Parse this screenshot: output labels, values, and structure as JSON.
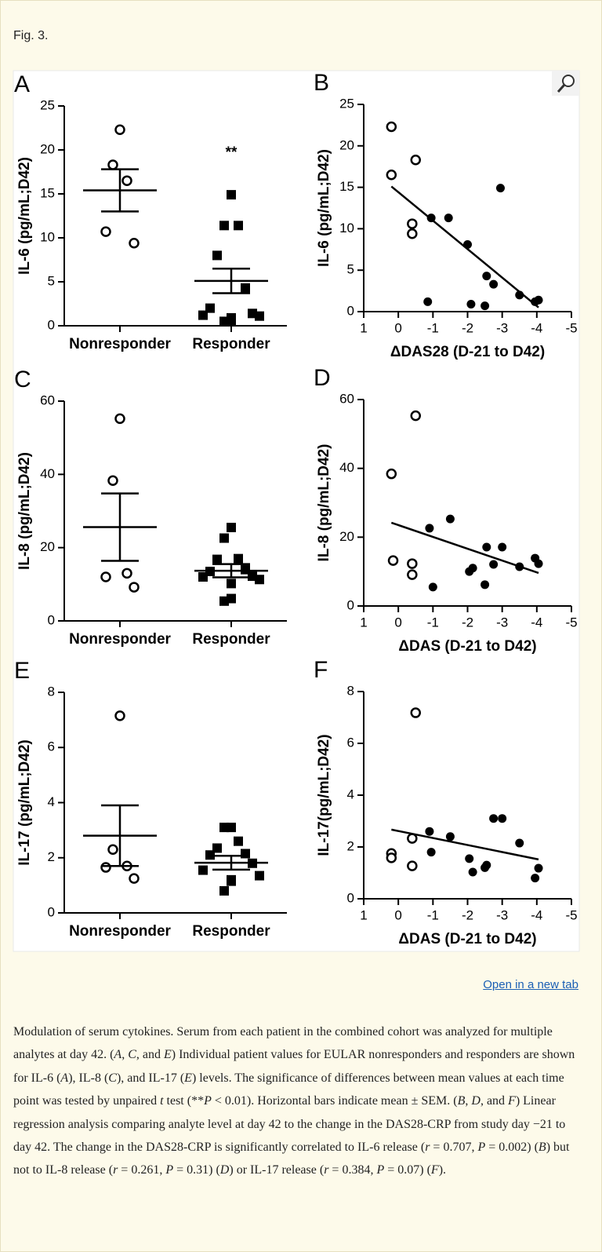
{
  "figure_label": "Fig. 3.",
  "link": "Open in a new tab",
  "chart_data": [
    {
      "type": "strip",
      "panel": "A",
      "ylabel": "IL-6 (pg/mL;D42)",
      "categories": [
        "Nonresponder",
        "Responder"
      ],
      "markers": [
        "circle-open",
        "square"
      ],
      "groups": [
        [
          22.3,
          18.3,
          16.5,
          10.7,
          9.4
        ],
        [
          14.9,
          11.4,
          11.4,
          8.0,
          4.3,
          2.0,
          1.4,
          1.2,
          1.1,
          0.9,
          0.6,
          0.5
        ]
      ],
      "means": [
        15.4,
        5.1
      ],
      "sems": [
        2.4,
        1.4
      ],
      "annotation": "**",
      "ylim": [
        0,
        25
      ],
      "yticks": [
        0,
        5,
        10,
        15,
        20,
        25
      ]
    },
    {
      "type": "scatter",
      "panel": "B",
      "ylabel": "IL-6 (pg/mL;D42)",
      "xlabel": "ΔDAS28 (D-21 to D42)",
      "series": [
        {
          "marker": "circle-open",
          "x": [
            0.2,
            0.2,
            -0.5,
            -0.4,
            -0.4
          ],
          "y": [
            22.3,
            16.5,
            18.3,
            10.6,
            9.4
          ]
        },
        {
          "marker": "circle-filled",
          "x": [
            -0.95,
            -1.45,
            -0.85,
            -2.0,
            -2.95,
            -2.1,
            -2.55,
            -2.75,
            -2.5,
            -3.5,
            -3.95,
            -4.05
          ],
          "y": [
            11.3,
            11.3,
            1.2,
            8.1,
            14.9,
            0.9,
            4.3,
            3.3,
            0.7,
            2.0,
            1.2,
            1.4
          ]
        }
      ],
      "fit": {
        "x": [
          0.2,
          -4.05
        ],
        "y": [
          15.1,
          0.5
        ]
      },
      "xlim": [
        1,
        -5
      ],
      "xticks": [
        1,
        0,
        -1,
        -2,
        -3,
        -4,
        -5
      ],
      "ylim": [
        0,
        25
      ],
      "yticks": [
        0,
        5,
        10,
        15,
        20,
        25
      ]
    },
    {
      "type": "strip",
      "panel": "C",
      "ylabel": "IL-8 (pg/mL;D42)",
      "categories": [
        "Nonresponder",
        "Responder"
      ],
      "markers": [
        "circle-open",
        "square"
      ],
      "groups": [
        [
          55.2,
          38.3,
          13.0,
          12.0,
          9.2
        ],
        [
          25.5,
          22.6,
          17.0,
          16.8,
          14.0,
          13.5,
          12.2,
          12.0,
          11.3,
          10.2,
          6.1,
          5.4
        ]
      ],
      "means": [
        25.6,
        13.7
      ],
      "sems": [
        9.2,
        1.8
      ],
      "ylim": [
        0,
        60
      ],
      "yticks": [
        0,
        20,
        40,
        60
      ]
    },
    {
      "type": "scatter",
      "panel": "D",
      "ylabel": "IL-8 (pg/mL;D42)",
      "xlabel": "ΔDAS (D-21 to D42)",
      "series": [
        {
          "marker": "circle-open",
          "x": [
            0.2,
            -0.5,
            0.15,
            -0.4,
            -0.4
          ],
          "y": [
            38.4,
            55.3,
            13.2,
            12.3,
            9.1
          ]
        },
        {
          "marker": "circle-filled",
          "x": [
            -0.9,
            -1.5,
            -1.0,
            -2.05,
            -2.15,
            -2.55,
            -3.0,
            -2.75,
            -2.5,
            -3.5,
            -3.95,
            -4.05
          ],
          "y": [
            22.6,
            25.3,
            5.5,
            10.0,
            11.0,
            17.1,
            17.1,
            12.1,
            6.2,
            11.4,
            13.9,
            12.3
          ]
        }
      ],
      "fit": {
        "x": [
          0.2,
          -4.05
        ],
        "y": [
          24.2,
          9.6
        ]
      },
      "xlim": [
        1,
        -5
      ],
      "xticks": [
        1,
        0,
        -1,
        -2,
        -3,
        -4,
        -5
      ],
      "ylim": [
        0,
        60
      ],
      "yticks": [
        0,
        20,
        40,
        60
      ]
    },
    {
      "type": "strip",
      "panel": "E",
      "ylabel": "IL-17 (pg/mL;D42)",
      "categories": [
        "Nonresponder",
        "Responder"
      ],
      "markers": [
        "circle-open",
        "square"
      ],
      "groups": [
        [
          7.15,
          2.3,
          1.7,
          1.65,
          1.25
        ],
        [
          3.1,
          3.1,
          2.6,
          2.35,
          2.15,
          2.1,
          1.8,
          1.55,
          1.35,
          1.2,
          1.15,
          0.8
        ]
      ],
      "means": [
        2.8,
        1.82
      ],
      "sems": [
        1.1,
        0.25
      ],
      "ylim": [
        0,
        8
      ],
      "yticks": [
        0,
        2,
        4,
        6,
        8
      ]
    },
    {
      "type": "scatter",
      "panel": "F",
      "ylabel": "IL-17(pg/mL;D42)",
      "xlabel": "ΔDAS (D-21 to D42)",
      "series": [
        {
          "marker": "circle-open",
          "x": [
            0.2,
            0.2,
            -0.4,
            -0.4,
            -0.5
          ],
          "y": [
            1.75,
            1.58,
            2.33,
            1.27,
            7.18
          ]
        },
        {
          "marker": "circle-filled",
          "x": [
            -0.9,
            -0.95,
            -1.5,
            -2.05,
            -2.15,
            -2.5,
            -2.55,
            -2.75,
            -3.0,
            -3.5,
            -3.95,
            -4.05
          ],
          "y": [
            2.6,
            1.8,
            2.4,
            1.55,
            1.03,
            1.2,
            1.3,
            3.1,
            3.1,
            2.15,
            0.8,
            1.18
          ]
        }
      ],
      "fit": {
        "x": [
          0.2,
          -4.05
        ],
        "y": [
          2.67,
          1.52
        ]
      },
      "xlim": [
        1,
        -5
      ],
      "xticks": [
        1,
        0,
        -1,
        -2,
        -3,
        -4,
        -5
      ],
      "ylim": [
        0,
        8
      ],
      "yticks": [
        0,
        2,
        4,
        6,
        8
      ]
    }
  ],
  "caption": [
    {
      "t": "Modulation of serum cytokines. Serum from each patient in the combined cohort was analyzed for multiple analytes at day 42. ("
    },
    {
      "t": "A",
      "i": true
    },
    {
      "t": ", "
    },
    {
      "t": "C",
      "i": true
    },
    {
      "t": ", and "
    },
    {
      "t": "E",
      "i": true
    },
    {
      "t": ") Individual patient values for EULAR nonresponders and responders are shown for IL-6 ("
    },
    {
      "t": "A",
      "i": true
    },
    {
      "t": "), IL-8 ("
    },
    {
      "t": "C",
      "i": true
    },
    {
      "t": "), and IL-17 ("
    },
    {
      "t": "E",
      "i": true
    },
    {
      "t": ") levels. The significance of differences between mean values at each time point was tested by unpaired "
    },
    {
      "t": "t",
      "i": true
    },
    {
      "t": " test (**"
    },
    {
      "t": "P",
      "i": true
    },
    {
      "t": " < 0.01). Horizontal bars indicate mean ± SEM. ("
    },
    {
      "t": "B",
      "i": true
    },
    {
      "t": ", "
    },
    {
      "t": "D",
      "i": true
    },
    {
      "t": ", and "
    },
    {
      "t": "F",
      "i": true
    },
    {
      "t": ") Linear regression analysis comparing analyte level at day 42 to the change in the DAS28-CRP from study day −21 to day 42. The change in the DAS28-CRP is significantly correlated to IL-6 release ("
    },
    {
      "t": "r",
      "i": true
    },
    {
      "t": " = 0.707, "
    },
    {
      "t": "P",
      "i": true
    },
    {
      "t": " = 0.002) ("
    },
    {
      "t": "B",
      "i": true
    },
    {
      "t": ") but not to IL-8 release ("
    },
    {
      "t": "r",
      "i": true
    },
    {
      "t": " = 0.261, "
    },
    {
      "t": "P",
      "i": true
    },
    {
      "t": " = 0.31) ("
    },
    {
      "t": "D",
      "i": true
    },
    {
      "t": ") or IL-17 release ("
    },
    {
      "t": "r",
      "i": true
    },
    {
      "t": " = 0.384, "
    },
    {
      "t": "P",
      "i": true
    },
    {
      "t": " = 0.07) ("
    },
    {
      "t": "F",
      "i": true
    },
    {
      "t": ")."
    }
  ]
}
